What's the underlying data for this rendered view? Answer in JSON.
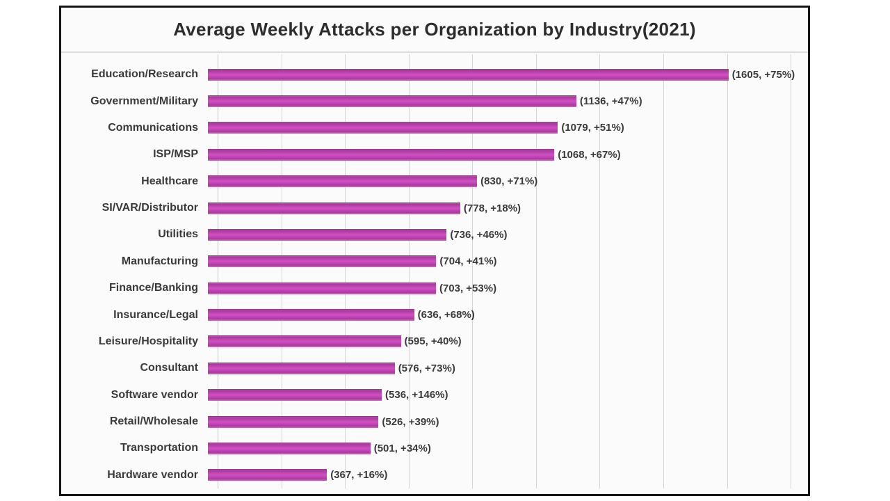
{
  "chart_data": {
    "type": "bar",
    "orientation": "horizontal",
    "title": "Average Weekly Attacks per Organization by Industry(2021)",
    "categories": [
      "Education/Research",
      "Government/Military",
      "Communications",
      "ISP/MSP",
      "Healthcare",
      "SI/VAR/Distributor",
      "Utilities",
      "Manufacturing",
      "Finance/Banking",
      "Insurance/Legal",
      "Leisure/Hospitality",
      "Consultant",
      "Software vendor",
      "Retail/Wholesale",
      "Transportation",
      "Hardware vendor"
    ],
    "values": [
      1605,
      1136,
      1079,
      1068,
      830,
      778,
      736,
      704,
      703,
      636,
      595,
      576,
      536,
      526,
      501,
      367
    ],
    "yoy_change_pct": [
      75,
      47,
      51,
      67,
      71,
      18,
      46,
      41,
      53,
      68,
      40,
      73,
      146,
      39,
      34,
      16
    ],
    "annotations": [
      "(1605, +75%)",
      "(1136, +47%)",
      "(1079, +51%)",
      "(1068, +67%)",
      "(830, +71%)",
      "(778, +18%)",
      "(736, +46%)",
      "(704, +41%)",
      "(703, +53%)",
      "(636, +68%)",
      "(595, +40%)",
      "(576, +73%)",
      "(536, +146%)",
      "(526, +39%)",
      "(501, +34%)",
      "(367, +16%)"
    ],
    "xlim": [
      0,
      1850
    ],
    "grid_interval": 200,
    "grid": true,
    "legend_position": "none",
    "bar_color": "#bf3cae",
    "gridline_color": "#d7d4d4",
    "border_color": "#161616",
    "text_color": "#3a3a3a"
  }
}
